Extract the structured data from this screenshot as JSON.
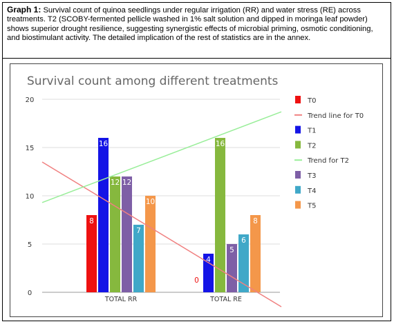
{
  "caption": {
    "title": "Graph 1:",
    "text": " Survival count of quinoa seedlings under regular irrigation (RR) and water stress (RE) across treatments. T2 (SCOBY-fermented pellicle washed in 1% salt solution and dipped in moringa leaf powder) shows superior drought resilience, suggesting synergistic effects of microbial priming, osmotic conditioning, and biostimulant activity. The detailed implication of the rest of statistics are in the annex."
  },
  "chart_data": {
    "type": "bar",
    "title": "Survival count among different treatments",
    "categories": [
      "TOTAL RR",
      "TOTAL RE"
    ],
    "ylim": [
      0,
      20
    ],
    "yticks": [
      0,
      5,
      10,
      15,
      20
    ],
    "grid": true,
    "legend_position": "right",
    "series": [
      {
        "name": "T0",
        "values": [
          8,
          0
        ],
        "color": "#ee1111"
      },
      {
        "name": "T1",
        "values": [
          16,
          4
        ],
        "color": "#1414e6"
      },
      {
        "name": "T2",
        "values": [
          12,
          16
        ],
        "color": "#86b83e"
      },
      {
        "name": "T3",
        "values": [
          12,
          5
        ],
        "color": "#7e5fa6"
      },
      {
        "name": "T4",
        "values": [
          7,
          6
        ],
        "color": "#40a8c8"
      },
      {
        "name": "T5",
        "values": [
          10,
          8
        ],
        "color": "#f4974a"
      }
    ],
    "trendlines": [
      {
        "name": "Trend line for T0",
        "series": "T0",
        "color": "#f08080",
        "y_at_left": 13.5,
        "y_at_right": -1.5
      },
      {
        "name": "Trend for T2",
        "series": "T2",
        "color": "#99ee99",
        "y_at_left": 9.3,
        "y_at_right": 18.7
      }
    ],
    "legend_order": [
      "T0",
      "Trend line for T0",
      "T1",
      "T2",
      "Trend for T2",
      "T3",
      "T4",
      "T5"
    ]
  }
}
